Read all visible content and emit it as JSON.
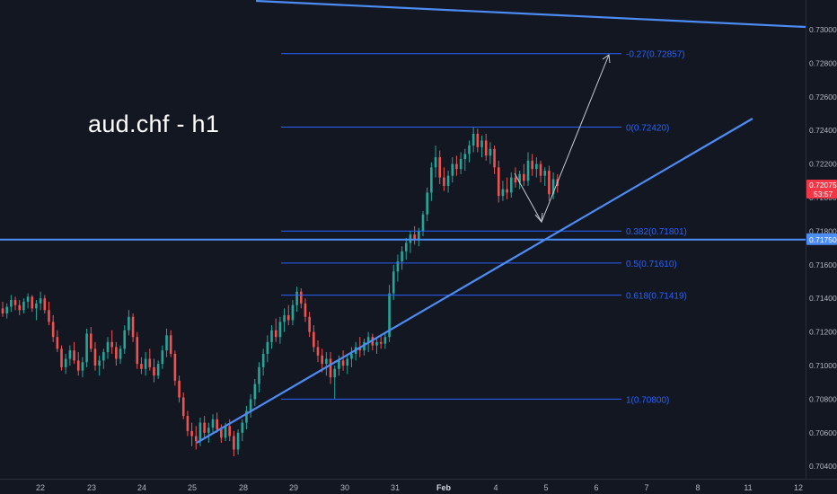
{
  "title": "aud.chf - h1",
  "chart_data": {
    "type": "candlestick",
    "title": "aud.chf - h1",
    "x_ticks": [
      "22",
      "23",
      "24",
      "25",
      "28",
      "29",
      "30",
      "31",
      "Feb",
      "4",
      "5",
      "6",
      "7",
      "8",
      "11",
      "12"
    ],
    "y_ticks": [
      "0.73000",
      "0.72800",
      "0.72600",
      "0.72400",
      "0.72200",
      "0.72000",
      "0.71800",
      "0.71600",
      "0.71400",
      "0.71200",
      "0.71000",
      "0.70800",
      "0.70600",
      "0.70400"
    ],
    "ylim": [
      0.703,
      0.7315
    ],
    "fib_levels": [
      {
        "label": "-0.27(0.72857)",
        "value": 0.72857
      },
      {
        "label": "0(0.72420)",
        "value": 0.7242
      },
      {
        "label": "0.382(0.71801)",
        "value": 0.71801
      },
      {
        "label": "0.5(0.71610)",
        "value": 0.7161
      },
      {
        "label": "0.618(0.71419)",
        "value": 0.71419
      },
      {
        "label": "1(0.70800)",
        "value": 0.708
      }
    ],
    "horizontal_level": {
      "value": 0.7175,
      "label": "0.71750"
    },
    "current_price": {
      "value": 0.72075,
      "label": "0.72075",
      "countdown": "53:57"
    },
    "candles": [
      [
        0.7134,
        0.7138,
        0.7129,
        0.7131
      ],
      [
        0.7131,
        0.7137,
        0.7128,
        0.7135
      ],
      [
        0.7135,
        0.7142,
        0.7132,
        0.7139
      ],
      [
        0.7139,
        0.7141,
        0.7133,
        0.7136
      ],
      [
        0.7136,
        0.7139,
        0.713,
        0.7133
      ],
      [
        0.7133,
        0.714,
        0.7131,
        0.7138
      ],
      [
        0.7138,
        0.7143,
        0.7134,
        0.7141
      ],
      [
        0.7141,
        0.7142,
        0.7132,
        0.7134
      ],
      [
        0.7134,
        0.7139,
        0.7127,
        0.7137
      ],
      [
        0.7137,
        0.7144,
        0.7133,
        0.714
      ],
      [
        0.714,
        0.7142,
        0.7131,
        0.7133
      ],
      [
        0.7133,
        0.7138,
        0.7124,
        0.7126
      ],
      [
        0.7126,
        0.713,
        0.7114,
        0.7117
      ],
      [
        0.7117,
        0.7121,
        0.7108,
        0.711
      ],
      [
        0.711,
        0.7112,
        0.7097,
        0.7099
      ],
      [
        0.7099,
        0.7107,
        0.7095,
        0.7104
      ],
      [
        0.7104,
        0.7112,
        0.71,
        0.7109
      ],
      [
        0.7109,
        0.7114,
        0.7101,
        0.7103
      ],
      [
        0.7103,
        0.7108,
        0.7094,
        0.7097
      ],
      [
        0.7097,
        0.7105,
        0.7093,
        0.7102
      ],
      [
        0.7102,
        0.7122,
        0.7099,
        0.7119
      ],
      [
        0.7119,
        0.7123,
        0.7108,
        0.711
      ],
      [
        0.711,
        0.7114,
        0.7097,
        0.71
      ],
      [
        0.71,
        0.7106,
        0.7094,
        0.7103
      ],
      [
        0.7103,
        0.711,
        0.7098,
        0.7108
      ],
      [
        0.7108,
        0.7117,
        0.7104,
        0.7114
      ],
      [
        0.7114,
        0.7121,
        0.7107,
        0.7111
      ],
      [
        0.7111,
        0.7114,
        0.71,
        0.7104
      ],
      [
        0.7104,
        0.7112,
        0.7101,
        0.711
      ],
      [
        0.711,
        0.7124,
        0.7107,
        0.7121
      ],
      [
        0.7121,
        0.7133,
        0.7118,
        0.7129
      ],
      [
        0.7129,
        0.7131,
        0.7114,
        0.7117
      ],
      [
        0.7117,
        0.712,
        0.7098,
        0.7101
      ],
      [
        0.7101,
        0.7105,
        0.7095,
        0.7098
      ],
      [
        0.7098,
        0.7108,
        0.7094,
        0.7104
      ],
      [
        0.7104,
        0.711,
        0.7097,
        0.7099
      ],
      [
        0.7099,
        0.7104,
        0.709,
        0.7094
      ],
      [
        0.7094,
        0.7103,
        0.7092,
        0.7101
      ],
      [
        0.7101,
        0.7112,
        0.7098,
        0.7109
      ],
      [
        0.7109,
        0.7122,
        0.7105,
        0.7118
      ],
      [
        0.7118,
        0.7121,
        0.7105,
        0.7107
      ],
      [
        0.7107,
        0.7109,
        0.7088,
        0.7091
      ],
      [
        0.7091,
        0.7094,
        0.7078,
        0.7081
      ],
      [
        0.7081,
        0.7084,
        0.7068,
        0.707
      ],
      [
        0.707,
        0.7073,
        0.7058,
        0.7061
      ],
      [
        0.7061,
        0.7066,
        0.7052,
        0.7058
      ],
      [
        0.7058,
        0.7064,
        0.705,
        0.7055
      ],
      [
        0.7055,
        0.7069,
        0.7052,
        0.7066
      ],
      [
        0.7066,
        0.707,
        0.7057,
        0.706
      ],
      [
        0.706,
        0.7066,
        0.7054,
        0.7063
      ],
      [
        0.7063,
        0.7071,
        0.7059,
        0.7068
      ],
      [
        0.7068,
        0.7072,
        0.706,
        0.7062
      ],
      [
        0.7062,
        0.7065,
        0.7054,
        0.7057
      ],
      [
        0.7057,
        0.7066,
        0.7055,
        0.7064
      ],
      [
        0.7064,
        0.7068,
        0.7055,
        0.7058
      ],
      [
        0.7058,
        0.7061,
        0.7046,
        0.705
      ],
      [
        0.705,
        0.7062,
        0.7047,
        0.706
      ],
      [
        0.706,
        0.7068,
        0.7055,
        0.7066
      ],
      [
        0.7066,
        0.7076,
        0.7062,
        0.7073
      ],
      [
        0.7073,
        0.7083,
        0.7069,
        0.708
      ],
      [
        0.708,
        0.7092,
        0.7076,
        0.7089
      ],
      [
        0.7089,
        0.7102,
        0.7084,
        0.7099
      ],
      [
        0.7099,
        0.711,
        0.7094,
        0.7107
      ],
      [
        0.7107,
        0.7118,
        0.7102,
        0.7114
      ],
      [
        0.7114,
        0.7124,
        0.711,
        0.7121
      ],
      [
        0.7121,
        0.7128,
        0.7114,
        0.7117
      ],
      [
        0.7117,
        0.7129,
        0.7113,
        0.7126
      ],
      [
        0.7126,
        0.7134,
        0.712,
        0.713
      ],
      [
        0.713,
        0.7136,
        0.7124,
        0.7127
      ],
      [
        0.7127,
        0.7139,
        0.7124,
        0.7136
      ],
      [
        0.7136,
        0.7147,
        0.7132,
        0.7144
      ],
      [
        0.7144,
        0.7146,
        0.7134,
        0.7137
      ],
      [
        0.7137,
        0.714,
        0.7126,
        0.7129
      ],
      [
        0.7129,
        0.7132,
        0.7117,
        0.712
      ],
      [
        0.712,
        0.7124,
        0.7108,
        0.7111
      ],
      [
        0.7111,
        0.7115,
        0.7102,
        0.7106
      ],
      [
        0.7106,
        0.711,
        0.7096,
        0.7101
      ],
      [
        0.7101,
        0.7108,
        0.7094,
        0.7104
      ],
      [
        0.7104,
        0.7108,
        0.7089,
        0.7093
      ],
      [
        0.7093,
        0.71,
        0.708,
        0.7098
      ],
      [
        0.7098,
        0.7106,
        0.7094,
        0.7103
      ],
      [
        0.7103,
        0.7109,
        0.7097,
        0.71
      ],
      [
        0.71,
        0.7107,
        0.7095,
        0.7104
      ],
      [
        0.7104,
        0.7111,
        0.7099,
        0.7107
      ],
      [
        0.7107,
        0.7114,
        0.7103,
        0.7111
      ],
      [
        0.7111,
        0.7117,
        0.7105,
        0.7109
      ],
      [
        0.7109,
        0.7116,
        0.7106,
        0.7114
      ],
      [
        0.7114,
        0.712,
        0.7108,
        0.7117
      ],
      [
        0.7117,
        0.7119,
        0.7109,
        0.7112
      ],
      [
        0.7112,
        0.7117,
        0.7107,
        0.7114
      ],
      [
        0.7114,
        0.7118,
        0.711,
        0.7113
      ],
      [
        0.7113,
        0.712,
        0.711,
        0.7117
      ],
      [
        0.7117,
        0.7148,
        0.7114,
        0.7143
      ],
      [
        0.7143,
        0.716,
        0.7139,
        0.7156
      ],
      [
        0.7156,
        0.7166,
        0.715,
        0.7162
      ],
      [
        0.7162,
        0.7171,
        0.7157,
        0.7168
      ],
      [
        0.7168,
        0.7176,
        0.7163,
        0.7173
      ],
      [
        0.7173,
        0.718,
        0.7167,
        0.7178
      ],
      [
        0.7178,
        0.7183,
        0.7172,
        0.7175
      ],
      [
        0.7175,
        0.7182,
        0.7171,
        0.718
      ],
      [
        0.718,
        0.7192,
        0.7177,
        0.719
      ],
      [
        0.719,
        0.7206,
        0.7186,
        0.7203
      ],
      [
        0.7203,
        0.7221,
        0.7198,
        0.7218
      ],
      [
        0.7218,
        0.7231,
        0.7212,
        0.7224
      ],
      [
        0.7224,
        0.7228,
        0.7208,
        0.7212
      ],
      [
        0.7212,
        0.7218,
        0.7204,
        0.7207
      ],
      [
        0.7207,
        0.7216,
        0.7203,
        0.7213
      ],
      [
        0.7213,
        0.7224,
        0.7209,
        0.722
      ],
      [
        0.722,
        0.7225,
        0.7213,
        0.7217
      ],
      [
        0.7217,
        0.7227,
        0.7214,
        0.7223
      ],
      [
        0.7223,
        0.7229,
        0.7216,
        0.7226
      ],
      [
        0.7226,
        0.7234,
        0.7221,
        0.7231
      ],
      [
        0.7231,
        0.7242,
        0.7227,
        0.7238
      ],
      [
        0.7238,
        0.7241,
        0.7227,
        0.723
      ],
      [
        0.723,
        0.7237,
        0.7224,
        0.7234
      ],
      [
        0.7234,
        0.7238,
        0.7222,
        0.7225
      ],
      [
        0.7225,
        0.7233,
        0.722,
        0.7229
      ],
      [
        0.7229,
        0.7231,
        0.7214,
        0.7218
      ],
      [
        0.7218,
        0.7222,
        0.7197,
        0.7201
      ],
      [
        0.7201,
        0.721,
        0.7198,
        0.7205
      ],
      [
        0.7205,
        0.7212,
        0.7199,
        0.7203
      ],
      [
        0.7203,
        0.7215,
        0.72,
        0.7212
      ],
      [
        0.7212,
        0.7218,
        0.7206,
        0.7209
      ],
      [
        0.7209,
        0.7216,
        0.7205,
        0.7214
      ],
      [
        0.7214,
        0.722,
        0.7207,
        0.721
      ],
      [
        0.721,
        0.7227,
        0.7207,
        0.7222
      ],
      [
        0.7222,
        0.7226,
        0.7213,
        0.7217
      ],
      [
        0.7217,
        0.7224,
        0.7212,
        0.722
      ],
      [
        0.722,
        0.7222,
        0.7209,
        0.7213
      ],
      [
        0.7213,
        0.7218,
        0.7207,
        0.7216
      ],
      [
        0.7216,
        0.7219,
        0.7198,
        0.7202
      ],
      [
        0.7202,
        0.7215,
        0.7199,
        0.7211
      ],
      [
        0.7211,
        0.7214,
        0.7203,
        0.7207
      ]
    ],
    "drawings": [
      "descending-trendline",
      "ascending-trendline",
      "projection-arrow"
    ]
  },
  "colors": {
    "background": "#131722",
    "bull": "#26a69a",
    "bear": "#ef5350",
    "fib": "#2962ff",
    "level": "#4c8cf5",
    "axis_text": "#b2b5be",
    "arrow": "#c6ccd4"
  }
}
